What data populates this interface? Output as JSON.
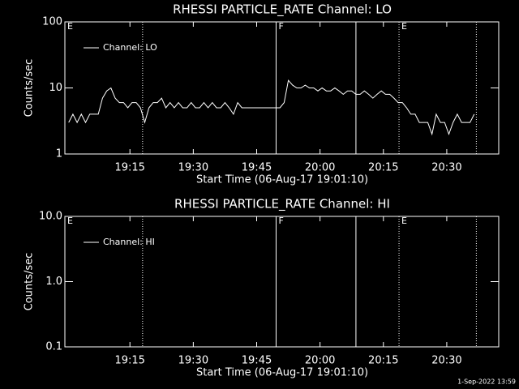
{
  "chart_data": [
    {
      "type": "line",
      "title": "RHESSI PARTICLE_RATE Channel: LO",
      "xlabel": "Start Time (06-Aug-17 19:01:10)",
      "ylabel": "Counts/sec",
      "x": [
        0.5,
        1.5,
        2.5,
        3.5,
        4.5,
        5.5,
        6.5,
        7.5,
        8.5,
        9.5,
        10.5,
        11.5,
        12.5,
        13.5,
        14.5,
        15.5,
        16.5,
        17.5,
        18.5,
        19.5,
        20.5,
        21.5,
        22.5,
        23.5,
        24.5,
        25.5,
        26.5,
        27.5,
        28.5,
        29.5,
        30.5,
        31.5,
        32.5,
        33.5,
        34.5,
        35.5,
        36.5,
        37.5,
        38.5,
        39.5,
        40.5,
        41.5,
        42.5,
        43.5,
        44.5,
        45.5,
        46.5,
        47.5,
        48.5,
        49.5,
        50.5,
        51.5,
        52.5,
        53.5,
        54.5,
        55.5,
        56.5,
        57.5,
        58.5,
        59.5,
        60.5,
        61.5,
        62.5,
        63.5,
        64.5,
        65.5,
        66.5,
        67.5,
        68.5,
        69.5,
        70.5,
        71.5,
        72.5,
        73.5,
        74.5,
        75.5,
        76.5,
        77.5,
        78.5,
        79.5,
        80.5,
        81.5,
        82.5,
        83.5,
        84.5,
        85.5,
        86.5,
        87.5,
        88.5,
        89.5,
        90.5,
        91.5,
        92.5,
        93.5,
        94.5,
        95.5,
        96.5
      ],
      "series": [
        {
          "name": "Channel: LO",
          "color": "#ffffff",
          "values": [
            3,
            4,
            3,
            4,
            3,
            4,
            4,
            4,
            7,
            9,
            10,
            7,
            6,
            6,
            5,
            6,
            6,
            5,
            3,
            5,
            6,
            6,
            7,
            5,
            6,
            5,
            6,
            5,
            5,
            6,
            5,
            5,
            6,
            5,
            6,
            5,
            5,
            6,
            5,
            4,
            6,
            5,
            5,
            5,
            5,
            5,
            5,
            5,
            5,
            5,
            5,
            6,
            13,
            11,
            10,
            10,
            11,
            10,
            10,
            9,
            10,
            9,
            9,
            10,
            9,
            8,
            9,
            9,
            8,
            8,
            9,
            8,
            7,
            8,
            9,
            8,
            8,
            7,
            6,
            6,
            5,
            4,
            4,
            3,
            3,
            3,
            2,
            4,
            3,
            3,
            2,
            3,
            4,
            3,
            3,
            3,
            4
          ]
        }
      ],
      "xlim": [
        -0.4,
        102.3
      ],
      "xticks": [
        {
          "value": 15,
          "label": "19:15"
        },
        {
          "value": 30,
          "label": "19:30"
        },
        {
          "value": 45,
          "label": "19:45"
        },
        {
          "value": 60,
          "label": "20:00"
        },
        {
          "value": 75,
          "label": "20:15"
        },
        {
          "value": 90,
          "label": "20:30"
        }
      ],
      "ylim": [
        1,
        100
      ],
      "yticks": [
        1,
        10,
        100
      ],
      "log_y": true,
      "vlines": [
        {
          "x": 18,
          "dotted": true
        },
        {
          "x": 49.6,
          "dotted": false
        },
        {
          "x": 68.5,
          "dotted": false
        },
        {
          "x": 78.7,
          "dotted": true
        },
        {
          "x": 97,
          "dotted": true
        }
      ],
      "flags": [
        {
          "x": -0.4,
          "label": "E"
        },
        {
          "x": 49.6,
          "label": "F"
        },
        {
          "x": 78.7,
          "label": "E"
        }
      ]
    },
    {
      "type": "line",
      "title": "RHESSI PARTICLE_RATE Channel: HI",
      "xlabel": "Start Time (06-Aug-17 19:01:10)",
      "ylabel": "Counts/sec",
      "x": [],
      "series": [
        {
          "name": "Channel: HI",
          "color": "#ffffff",
          "values": []
        }
      ],
      "xlim": [
        -0.4,
        102.3
      ],
      "xticks": [
        {
          "value": 15,
          "label": "19:15"
        },
        {
          "value": 30,
          "label": "19:30"
        },
        {
          "value": 45,
          "label": "19:45"
        },
        {
          "value": 60,
          "label": "20:00"
        },
        {
          "value": 75,
          "label": "20:15"
        },
        {
          "value": 90,
          "label": "20:30"
        }
      ],
      "ylim": [
        0.1,
        10
      ],
      "yticks": [
        0.1,
        {
          "value": 1,
          "label": "1.0"
        },
        {
          "value": 10,
          "label": "10.0"
        }
      ],
      "log_y": true,
      "vlines": [
        {
          "x": 18,
          "dotted": true
        },
        {
          "x": 49.6,
          "dotted": false
        },
        {
          "x": 68.5,
          "dotted": false
        },
        {
          "x": 78.7,
          "dotted": true
        },
        {
          "x": 97,
          "dotted": true
        }
      ],
      "flags": [
        {
          "x": -0.4,
          "label": "E"
        },
        {
          "x": 49.6,
          "label": "F"
        },
        {
          "x": 78.7,
          "label": "E"
        }
      ]
    }
  ],
  "footer": "1-Sep-2022 13:59"
}
